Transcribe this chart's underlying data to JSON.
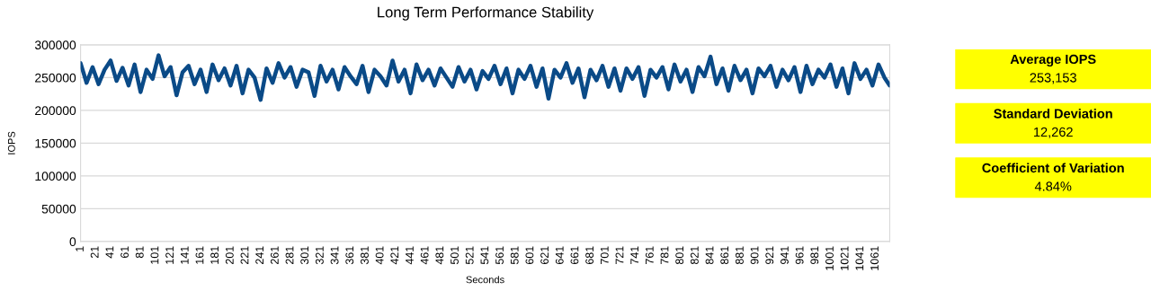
{
  "chart_data": [
    {
      "type": "line",
      "title": "Long Term Performance Stability",
      "xlabel": "Seconds",
      "ylabel": "IOPS",
      "x": [
        1,
        9,
        17,
        25,
        33,
        41,
        49,
        57,
        65,
        73,
        81,
        89,
        97,
        105,
        113,
        121,
        129,
        137,
        145,
        153,
        161,
        169,
        177,
        185,
        193,
        201,
        209,
        217,
        225,
        233,
        241,
        249,
        257,
        265,
        273,
        281,
        289,
        297,
        305,
        313,
        321,
        329,
        337,
        345,
        353,
        361,
        369,
        377,
        385,
        393,
        401,
        409,
        417,
        425,
        433,
        441,
        449,
        457,
        465,
        473,
        481,
        489,
        497,
        505,
        513,
        521,
        529,
        537,
        545,
        553,
        561,
        569,
        577,
        585,
        593,
        601,
        609,
        617,
        625,
        633,
        641,
        649,
        657,
        665,
        673,
        681,
        689,
        697,
        705,
        713,
        721,
        729,
        737,
        745,
        753,
        761,
        769,
        777,
        785,
        793,
        801,
        809,
        817,
        825,
        833,
        841,
        849,
        857,
        865,
        873,
        881,
        889,
        897,
        905,
        913,
        921,
        929,
        937,
        945,
        953,
        961,
        969,
        977,
        985,
        993,
        1001,
        1009,
        1017,
        1025,
        1033,
        1041,
        1049,
        1057,
        1065,
        1073,
        1080
      ],
      "series": [
        {
          "color": "#0a4a87",
          "values": [
            272000,
            242000,
            266000,
            240000,
            262000,
            276000,
            245000,
            265000,
            238000,
            270000,
            228000,
            262000,
            248000,
            284000,
            252000,
            266000,
            223000,
            258000,
            268000,
            240000,
            262000,
            228000,
            270000,
            246000,
            264000,
            238000,
            268000,
            226000,
            262000,
            250000,
            216000,
            264000,
            242000,
            272000,
            250000,
            266000,
            236000,
            262000,
            258000,
            222000,
            268000,
            244000,
            262000,
            232000,
            266000,
            252000,
            240000,
            268000,
            228000,
            262000,
            252000,
            238000,
            276000,
            244000,
            262000,
            226000,
            270000,
            246000,
            262000,
            238000,
            264000,
            250000,
            236000,
            266000,
            244000,
            262000,
            232000,
            260000,
            248000,
            268000,
            240000,
            264000,
            226000,
            262000,
            248000,
            268000,
            236000,
            264000,
            218000,
            262000,
            250000,
            272000,
            242000,
            264000,
            220000,
            262000,
            246000,
            268000,
            236000,
            264000,
            230000,
            264000,
            248000,
            266000,
            222000,
            262000,
            250000,
            266000,
            232000,
            270000,
            244000,
            262000,
            228000,
            266000,
            252000,
            282000,
            240000,
            264000,
            230000,
            268000,
            246000,
            262000,
            226000,
            264000,
            252000,
            268000,
            236000,
            262000,
            246000,
            266000,
            228000,
            268000,
            240000,
            262000,
            250000,
            270000,
            236000,
            264000,
            226000,
            272000,
            248000,
            262000,
            238000,
            270000,
            250000,
            238000
          ]
        }
      ],
      "xlim": [
        1,
        1080
      ],
      "ylim": [
        0,
        300000
      ],
      "yticks": [
        0,
        50000,
        100000,
        150000,
        200000,
        250000,
        300000
      ],
      "xticks": [
        1,
        21,
        41,
        61,
        81,
        101,
        121,
        141,
        161,
        181,
        201,
        221,
        241,
        261,
        281,
        301,
        321,
        341,
        361,
        381,
        401,
        421,
        441,
        461,
        481,
        501,
        521,
        541,
        561,
        581,
        601,
        621,
        641,
        661,
        681,
        701,
        721,
        741,
        761,
        781,
        801,
        821,
        841,
        861,
        881,
        901,
        921,
        941,
        961,
        981,
        1001,
        1021,
        1041,
        1061
      ],
      "grid": "y",
      "legend": false
    },
    {
      "type": "other",
      "annotations": [
        "Average IOPS",
        "253,153",
        "Standard Deviation",
        "12,262",
        "Coefficient of Variation",
        "4.84%"
      ]
    }
  ]
}
